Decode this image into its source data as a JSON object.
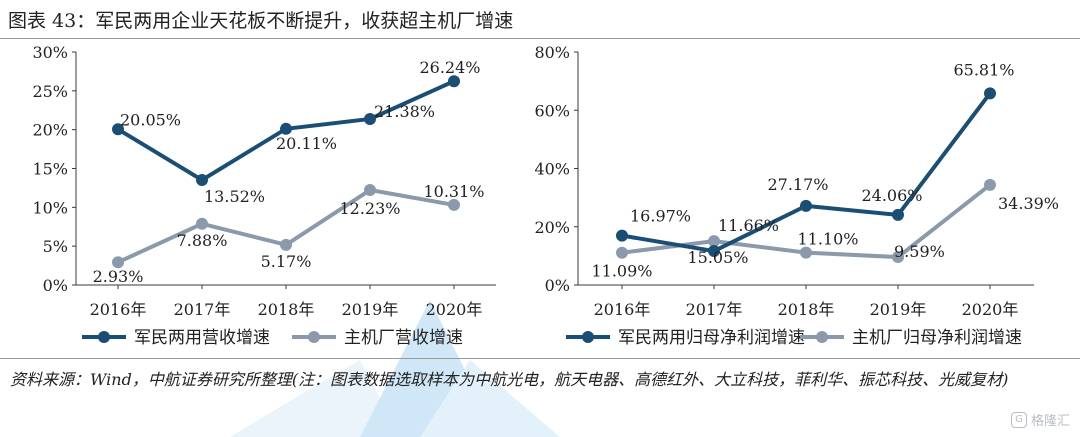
{
  "title": "图表 43：军民两用企业天花板不断提升，收获超主机厂增速",
  "source": "资料来源：Wind，中航证券研究所整理(注：图表数据选取样本为中航光电，航天电器、高德红外、大立科技，菲利华、振芯科技、光威复材)",
  "watermark": "格隆汇",
  "colors": {
    "dark": "#1a4e74",
    "light": "#8b9aab",
    "axis": "#3a3a3a"
  },
  "chart_data": [
    {
      "type": "line",
      "categories": [
        "2016年",
        "2017年",
        "2018年",
        "2019年",
        "2020年"
      ],
      "ylim": [
        0,
        30
      ],
      "yticks": [
        "0%",
        "5%",
        "10%",
        "15%",
        "20%",
        "25%",
        "30%"
      ],
      "series": [
        {
          "name": "军民两用营收增速",
          "color": "#1a4e74",
          "values": [
            20.05,
            13.52,
            20.11,
            21.38,
            26.24
          ],
          "labels": [
            "20.05%",
            "13.52%",
            "20.11%",
            "21.38%",
            "26.24%"
          ]
        },
        {
          "name": "主机厂营收增速",
          "color": "#8b9aab",
          "values": [
            2.93,
            7.88,
            5.17,
            12.23,
            10.31
          ],
          "labels": [
            "2.93%",
            "7.88%",
            "5.17%",
            "12.23%",
            "10.31%"
          ]
        }
      ]
    },
    {
      "type": "line",
      "categories": [
        "2016年",
        "2017年",
        "2018年",
        "2019年",
        "2020年"
      ],
      "ylim": [
        0,
        80
      ],
      "yticks": [
        "0%",
        "20%",
        "40%",
        "60%",
        "80%"
      ],
      "series": [
        {
          "name": "军民两用归母净利润增速",
          "color": "#1a4e74",
          "values": [
            16.97,
            11.66,
            27.17,
            24.06,
            65.81
          ],
          "labels": [
            "16.97%",
            "11.66%",
            "27.17%",
            "24.06%",
            "65.81%"
          ]
        },
        {
          "name": "主机厂归母净利润增速",
          "color": "#8b9aab",
          "values": [
            11.09,
            15.05,
            11.1,
            9.59,
            34.39
          ],
          "labels": [
            "11.09%",
            "15.05%",
            "11.10%",
            "9.59%",
            "34.39%"
          ]
        }
      ]
    }
  ]
}
